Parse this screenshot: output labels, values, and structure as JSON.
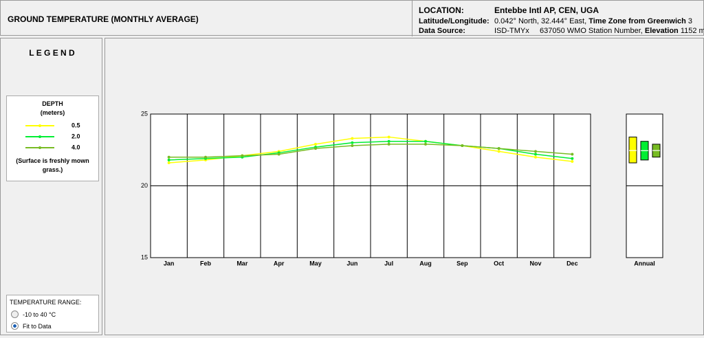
{
  "header": {
    "title": "GROUND TEMPERATURE (MONTHLY AVERAGE)",
    "location_label": "LOCATION:",
    "location": "Entebbe Intl AP, CEN, UGA",
    "latlon_label": "Latitude/Longitude:",
    "latlon": "0.042° North, 32.444° East,",
    "tz_label": "Time Zone from Greenwich",
    "tz": "3",
    "source_label": "Data Source:",
    "source": "ISD-TMYx",
    "wmo": "637050 WMO Station Number,",
    "elev_label": "Elevation",
    "elev": "1152 m"
  },
  "legend": {
    "title": "L E G E N D",
    "heading": "DEPTH",
    "unit": "(meters)",
    "note": "(Surface is freshly mown grass.)"
  },
  "range": {
    "title": "TEMPERATURE RANGE:",
    "options": [
      "-10 to 40 °C",
      "Fit to Data"
    ],
    "selected": 1
  },
  "chart_data": {
    "type": "line",
    "categories": [
      "Jan",
      "Feb",
      "Mar",
      "Apr",
      "May",
      "Jun",
      "Jul",
      "Aug",
      "Sep",
      "Oct",
      "Nov",
      "Dec"
    ],
    "annual_label": "Annual",
    "series": [
      {
        "name": "0.5",
        "color": "#ffff00",
        "values": [
          21.6,
          21.8,
          22.1,
          22.4,
          22.9,
          23.3,
          23.4,
          23.1,
          22.8,
          22.4,
          22.0,
          21.7
        ]
      },
      {
        "name": "2.0",
        "color": "#00ee33",
        "values": [
          21.8,
          21.9,
          22.0,
          22.3,
          22.7,
          23.0,
          23.1,
          23.1,
          22.8,
          22.6,
          22.2,
          21.9
        ]
      },
      {
        "name": "4.0",
        "color": "#77bb22",
        "values": [
          22.0,
          22.0,
          22.1,
          22.2,
          22.6,
          22.8,
          22.9,
          22.9,
          22.8,
          22.6,
          22.4,
          22.2
        ]
      }
    ],
    "ylim": [
      15,
      25
    ],
    "yticks": [
      15,
      20,
      25
    ],
    "grid": true
  }
}
